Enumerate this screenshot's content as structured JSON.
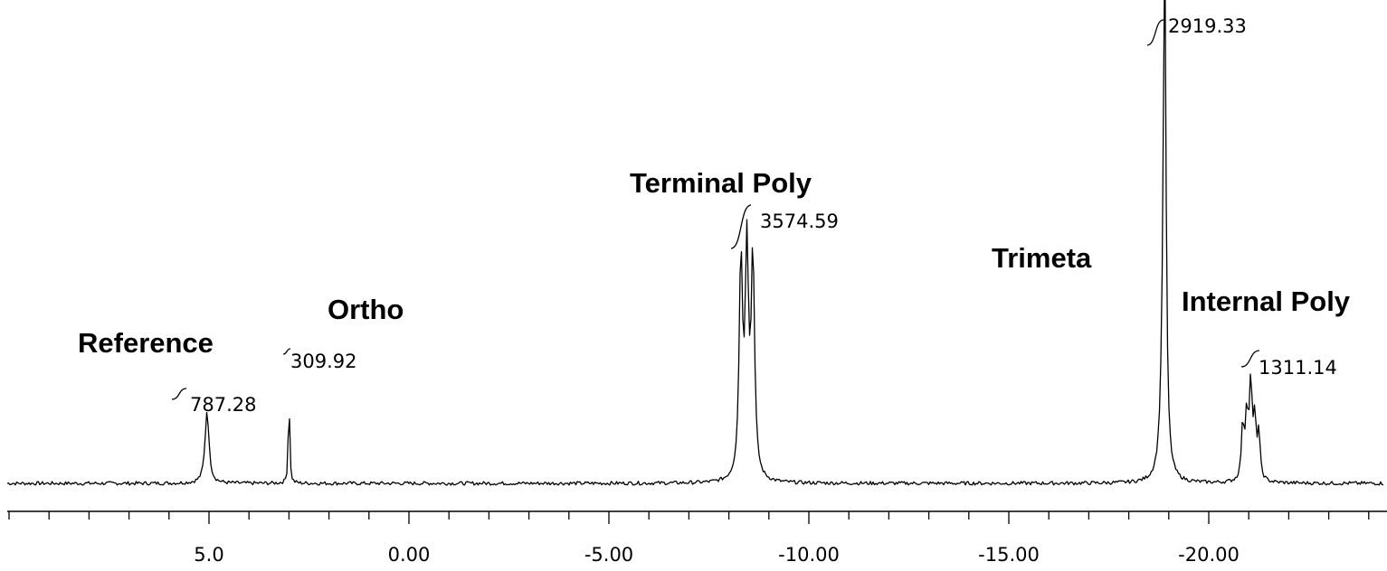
{
  "chart_data": {
    "type": "line",
    "x_axis": {
      "range": [
        10.0,
        -24.0
      ],
      "direction": "reversed",
      "major_ticks": [
        5.0,
        0.0,
        -5.0,
        -10.0,
        -15.0,
        -20.0
      ],
      "tick_labels": [
        "5.0",
        "0.00",
        "-5.00",
        "-10.00",
        "-15.00",
        "-20.00"
      ],
      "minor_tick_step": 1.0
    },
    "grid": false,
    "peaks": [
      {
        "name": "Reference",
        "shift": 5.05,
        "integral": "787.28"
      },
      {
        "name": "Ortho",
        "shift": 3.0,
        "integral": "309.92"
      },
      {
        "name": "Terminal Poly",
        "shift": -8.5,
        "integral": "3574.59"
      },
      {
        "name": "Trimeta",
        "shift": -18.9,
        "integral": "2919.33"
      },
      {
        "name": "Internal Poly",
        "shift": -21.0,
        "integral": "1311.14"
      }
    ]
  }
}
